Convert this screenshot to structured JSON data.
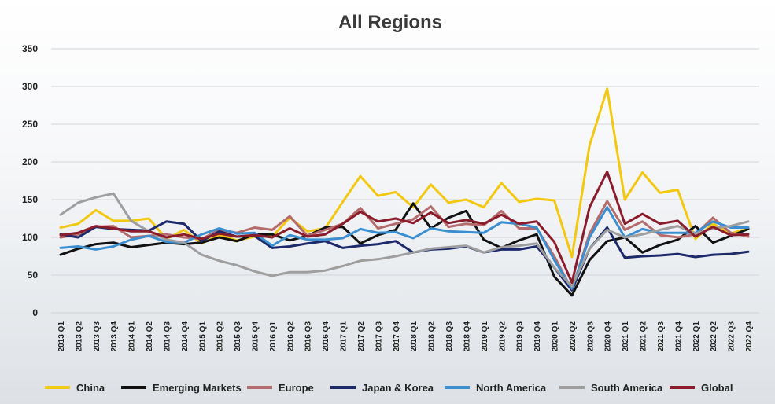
{
  "chart_data": {
    "type": "line",
    "title": "All Regions",
    "xlabel": "",
    "ylabel": "",
    "ylim": [
      0,
      350
    ],
    "yticks": [
      0,
      50,
      100,
      150,
      200,
      250,
      300,
      350
    ],
    "grid": true,
    "legend_position": "bottom",
    "categories": [
      "2013 Q1",
      "2013 Q2",
      "2013 Q3",
      "2013 Q4",
      "2014 Q1",
      "2014 Q2",
      "2014 Q3",
      "2014 Q4",
      "2015 Q1",
      "2015 Q2",
      "2015 Q3",
      "2015 Q4",
      "2016 Q1",
      "2016 Q2",
      "2016 Q3",
      "2016 Q4",
      "2017 Q1",
      "2017 Q2",
      "2017 Q3",
      "2017 Q4",
      "2018 Q1",
      "2018 Q2",
      "2018 Q3",
      "2018 Q4",
      "2019 Q1",
      "2019 Q2",
      "2019 Q3",
      "2019 Q4",
      "2020 Q1",
      "2020 Q2",
      "2020 Q3",
      "2020 Q4",
      "2021 Q1",
      "2021 Q2",
      "2021 Q3",
      "2021 Q4",
      "2022 Q1",
      "2022 Q2",
      "2022 Q3",
      "2022 Q4"
    ],
    "series": [
      {
        "name": "China",
        "color": "#f2c811",
        "values": [
          113,
          118,
          136,
          122,
          122,
          125,
          98,
          110,
          92,
          103,
          96,
          101,
          101,
          126,
          108,
          112,
          147,
          181,
          155,
          160,
          140,
          170,
          146,
          150,
          140,
          172,
          147,
          151,
          149,
          74,
          222,
          297,
          150,
          186,
          159,
          163,
          98,
          118,
          105,
          112
        ]
      },
      {
        "name": "Emerging Markets",
        "color": "#111111",
        "values": [
          77,
          85,
          91,
          93,
          87,
          90,
          93,
          91,
          93,
          100,
          95,
          104,
          104,
          96,
          102,
          113,
          114,
          92,
          103,
          110,
          145,
          112,
          126,
          135,
          97,
          86,
          96,
          104,
          48,
          23,
          70,
          95,
          100,
          80,
          90,
          97,
          115,
          93,
          102,
          111
        ]
      },
      {
        "name": "Europe",
        "color": "#b56b6b",
        "values": [
          100,
          104,
          114,
          115,
          100,
          102,
          104,
          100,
          98,
          110,
          106,
          113,
          110,
          128,
          102,
          110,
          118,
          139,
          112,
          118,
          124,
          141,
          114,
          118,
          116,
          135,
          112,
          112,
          75,
          30,
          105,
          148,
          110,
          121,
          103,
          100,
          104,
          126,
          106,
          101
        ]
      },
      {
        "name": "Japan & Korea",
        "color": "#1c2a6b",
        "values": [
          104,
          100,
          114,
          111,
          110,
          109,
          121,
          118,
          95,
          108,
          101,
          102,
          86,
          88,
          92,
          95,
          86,
          89,
          91,
          95,
          80,
          84,
          85,
          88,
          80,
          84,
          84,
          88,
          60,
          30,
          85,
          113,
          73,
          75,
          76,
          78,
          74,
          77,
          78,
          81
        ]
      },
      {
        "name": "North America",
        "color": "#3b8fd1",
        "values": [
          86,
          88,
          84,
          88,
          97,
          102,
          94,
          93,
          104,
          112,
          105,
          106,
          89,
          103,
          97,
          97,
          99,
          111,
          106,
          107,
          99,
          112,
          108,
          107,
          106,
          120,
          118,
          113,
          70,
          32,
          100,
          140,
          100,
          111,
          106,
          106,
          106,
          121,
          113,
          113
        ]
      },
      {
        "name": "South America",
        "color": "#9e9e9e",
        "values": [
          130,
          146,
          153,
          158,
          122,
          108,
          97,
          93,
          77,
          69,
          63,
          55,
          49,
          54,
          54,
          56,
          62,
          69,
          71,
          75,
          80,
          85,
          87,
          89,
          80,
          87,
          89,
          92,
          60,
          35,
          85,
          110,
          100,
          104,
          110,
          115,
          105,
          112,
          115,
          121
        ]
      },
      {
        "name": "Global",
        "color": "#8b1c2c",
        "values": [
          103,
          106,
          115,
          112,
          108,
          108,
          100,
          104,
          98,
          105,
          101,
          103,
          100,
          112,
          101,
          104,
          118,
          134,
          121,
          125,
          119,
          133,
          119,
          123,
          118,
          130,
          118,
          121,
          94,
          40,
          140,
          187,
          118,
          131,
          118,
          122,
          101,
          114,
          103,
          104
        ]
      }
    ]
  }
}
